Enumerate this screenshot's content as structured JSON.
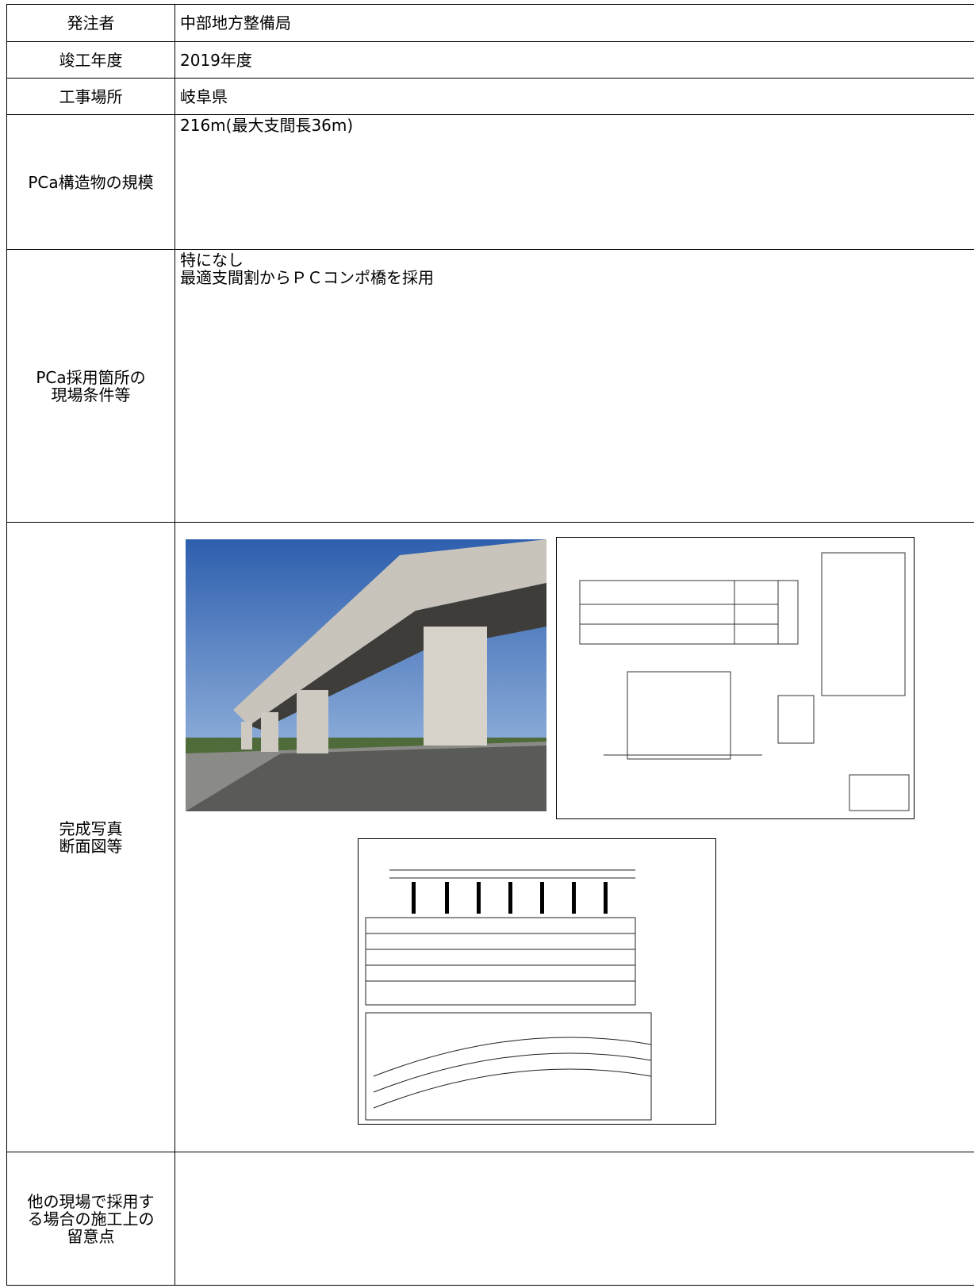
{
  "rows": [
    {
      "label": [
        "発注者"
      ],
      "value": [
        "中部地方整備局"
      ]
    },
    {
      "label": [
        "竣工年度"
      ],
      "value": [
        "2019年度"
      ]
    },
    {
      "label": [
        "工事場所"
      ],
      "value": [
        "岐阜県"
      ]
    },
    {
      "label": [
        "PCa構造物の規模"
      ],
      "value": [
        "216m(最大支間長36m)"
      ]
    },
    {
      "label": [
        "PCa採用箇所の",
        "現場条件等"
      ],
      "value": [
        "特になし",
        "最適支間割からＰＣコンポ橋を採用"
      ]
    },
    {
      "label": [
        "完成写真",
        "断面図等"
      ]
    },
    {
      "label": [
        "他の現場で採用す",
        "る場合の施工上の",
        "留意点"
      ]
    }
  ]
}
